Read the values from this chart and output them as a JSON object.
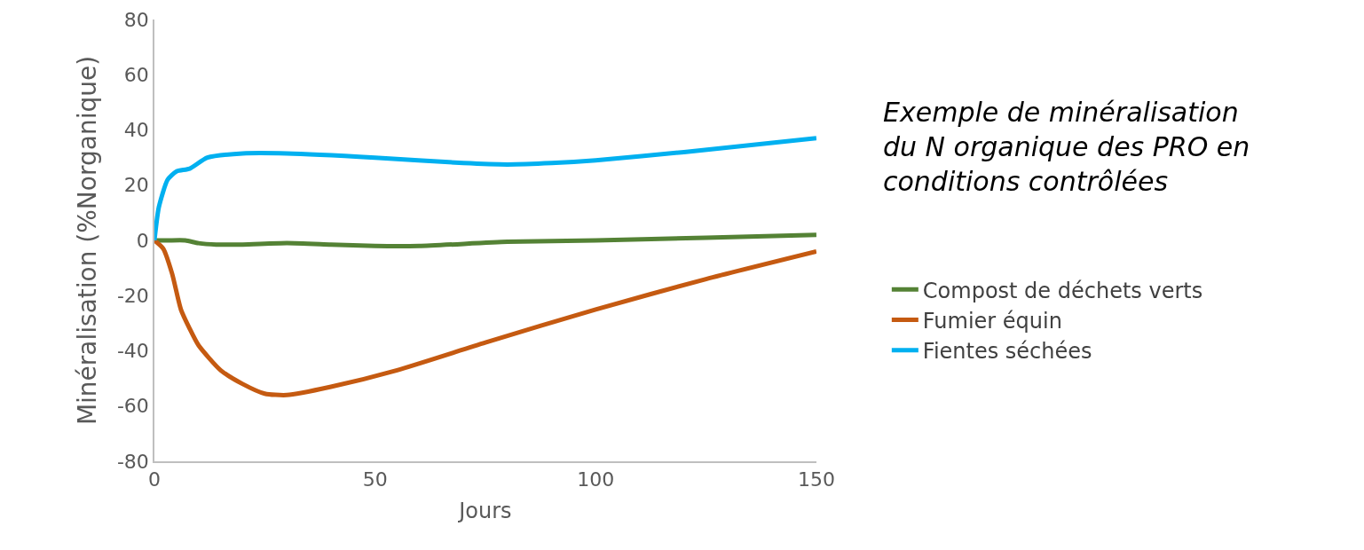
{
  "chart_data": {
    "type": "line",
    "xlabel": "Jours",
    "ylabel": "Minéralisation (%Norganique)",
    "annotations": [
      "Exemple de minéralisation du N organique des PRO en conditions contrôlées"
    ],
    "xlim": [
      0,
      150
    ],
    "xticks": [
      0,
      50,
      100,
      150
    ],
    "ylim": [
      -80,
      80
    ],
    "yticks": [
      -80,
      -60,
      -40,
      -20,
      0,
      20,
      40,
      60,
      80
    ],
    "legend": "right",
    "marker": "none",
    "line_style": "solid",
    "series": [
      {
        "name": "Compost de déchets verts",
        "color": "#548235",
        "x": [
          0,
          3,
          7,
          10,
          14,
          20,
          30,
          40,
          50,
          60,
          80,
          100,
          125,
          150
        ],
        "values": [
          0,
          0,
          0,
          -1,
          -1.5,
          -1.5,
          -1,
          -1.5,
          -2,
          -2,
          -0.5,
          0,
          1,
          2
        ]
      },
      {
        "name": "Fumier équin",
        "color": "#c55a11",
        "x": [
          0,
          2,
          4,
          6,
          8,
          10,
          15,
          20,
          25,
          30,
          40,
          55,
          75,
          100,
          125,
          150
        ],
        "values": [
          0,
          -3,
          -12,
          -25,
          -32,
          -38,
          -47,
          -52,
          -55.5,
          -56,
          -53,
          -47,
          -37,
          -25,
          -14,
          -4
        ]
      },
      {
        "name": "Fientes séchées",
        "color": "#00b0f0",
        "x": [
          0,
          1,
          3,
          5,
          8,
          12,
          20,
          30,
          50,
          70,
          80,
          90,
          100,
          120,
          150
        ],
        "values": [
          0,
          12,
          22,
          25,
          26,
          30,
          31.5,
          31.5,
          30,
          28,
          27.5,
          28,
          29,
          32,
          37
        ]
      }
    ]
  }
}
